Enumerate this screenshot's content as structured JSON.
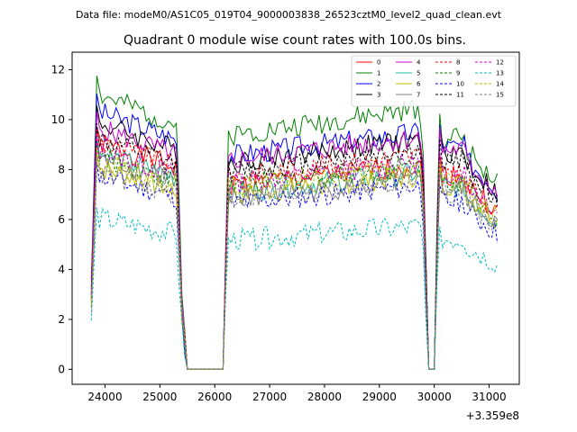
{
  "chart_data": {
    "type": "line",
    "suptitle": "Data file: modeM0/AS1C05_019T04_9000003838_26523cztM0_level2_quad_clean.evt",
    "title": "Quadrant 0 module wise count rates with 100.0s bins.",
    "xlabel": "",
    "ylabel": "",
    "x_offset_label": "+3.359e8",
    "xlim": [
      23400,
      31550
    ],
    "ylim": [
      -0.6,
      12.7
    ],
    "xticks": [
      24000,
      25000,
      26000,
      27000,
      28000,
      29000,
      30000,
      31000
    ],
    "xtick_labels": [
      "24000",
      "25000",
      "26000",
      "27000",
      "28000",
      "29000",
      "30000",
      "31000"
    ],
    "yticks": [
      0,
      2,
      4,
      6,
      8,
      10,
      12
    ],
    "ytick_labels": [
      "0",
      "2",
      "4",
      "6",
      "8",
      "10",
      "12"
    ],
    "legend_position": "upper-right",
    "knots": {
      "x": [
        23750,
        23850,
        23950,
        25300,
        25400,
        25500,
        26150,
        26250,
        29700,
        29800,
        29900,
        30000,
        30100,
        30200,
        31100,
        31150
      ],
      "ramp": [
        0.32,
        0.96,
        0.88,
        0.86,
        0.25,
        0,
        0,
        0.85,
        0.97,
        0.72,
        0,
        0,
        0.97,
        0.88,
        0.7,
        0.68
      ]
    },
    "series": [
      {
        "name": "0",
        "color": "#ff0000",
        "dash": "solid",
        "early": 8.1,
        "mid": 8.0,
        "late": 7.8,
        "seed": 1
      },
      {
        "name": "1",
        "color": "#008000",
        "dash": "solid",
        "early": 9.8,
        "mid": 10.2,
        "late": 9.3,
        "seed": 2
      },
      {
        "name": "2",
        "color": "#0000ff",
        "dash": "solid",
        "early": 9.2,
        "mid": 9.3,
        "late": 8.9,
        "seed": 3
      },
      {
        "name": "3",
        "color": "#000000",
        "dash": "solid",
        "early": 8.8,
        "mid": 9.0,
        "late": 8.7,
        "seed": 4
      },
      {
        "name": "4",
        "color": "#cc00cc",
        "dash": "solid",
        "early": 8.6,
        "mid": 9.1,
        "late": 8.8,
        "seed": 5
      },
      {
        "name": "5",
        "color": "#1abc9c",
        "dash": "solid",
        "early": 7.7,
        "mid": 7.7,
        "late": 7.3,
        "seed": 6
      },
      {
        "name": "6",
        "color": "#bfbf00",
        "dash": "solid",
        "early": 7.2,
        "mid": 7.6,
        "late": 7.4,
        "seed": 7
      },
      {
        "name": "7",
        "color": "#808080",
        "dash": "solid",
        "early": 7.6,
        "mid": 7.4,
        "late": 7.2,
        "seed": 8
      },
      {
        "name": "8",
        "color": "#ff0000",
        "dash": "dashed",
        "early": 8.1,
        "mid": 8.4,
        "late": 7.8,
        "seed": 9
      },
      {
        "name": "9",
        "color": "#008000",
        "dash": "dashed",
        "early": 7.6,
        "mid": 8.0,
        "late": 7.6,
        "seed": 10
      },
      {
        "name": "10",
        "color": "#0000ff",
        "dash": "dashed",
        "early": 6.9,
        "mid": 7.2,
        "late": 6.7,
        "seed": 11
      },
      {
        "name": "11",
        "color": "#000000",
        "dash": "dashed",
        "early": 8.2,
        "mid": 8.6,
        "late": 8.4,
        "seed": 12
      },
      {
        "name": "12",
        "color": "#cc00cc",
        "dash": "dashed",
        "early": 7.8,
        "mid": 8.1,
        "late": 7.9,
        "seed": 13
      },
      {
        "name": "13",
        "color": "#00bfbf",
        "dash": "dashed",
        "early": 5.4,
        "mid": 5.6,
        "late": 5.2,
        "seed": 14
      },
      {
        "name": "14",
        "color": "#bfbf00",
        "dash": "dashed",
        "early": 7.4,
        "mid": 7.9,
        "late": 7.6,
        "seed": 15
      },
      {
        "name": "15",
        "color": "#808080",
        "dash": "dashed",
        "early": 7.0,
        "mid": 7.4,
        "late": 7.1,
        "seed": 16
      }
    ]
  }
}
